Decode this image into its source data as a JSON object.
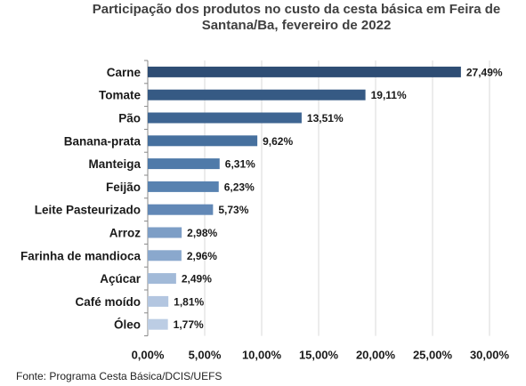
{
  "chart_data": {
    "type": "bar",
    "orientation": "horizontal",
    "title": "Participação dos produtos no custo da cesta básica em Feira de Santana/Ba, fevereiro de 2022",
    "title_lines": [
      "Participação dos produtos no custo da cesta básica em Feira de",
      "Santana/Ba, fevereiro de 2022"
    ],
    "categories": [
      "Carne",
      "Tomate",
      "Pão",
      "Banana-prata",
      "Manteiga",
      "Feijão",
      "Leite Pasteurizado",
      "Arroz",
      "Farinha de mandioca",
      "Açúcar",
      "Café moído",
      "Óleo"
    ],
    "values": [
      27.49,
      19.11,
      13.51,
      9.62,
      6.31,
      6.23,
      5.73,
      2.98,
      2.96,
      2.49,
      1.81,
      1.77
    ],
    "value_labels": [
      "27,49%",
      "19,11%",
      "13,51%",
      "9,62%",
      "6,31%",
      "6,23%",
      "5,73%",
      "2,98%",
      "2,96%",
      "2,49%",
      "1,81%",
      "1,77%"
    ],
    "bar_colors": [
      "#2e4d74",
      "#365a84",
      "#3e6592",
      "#46709e",
      "#4f7aa9",
      "#5882b0",
      "#6288b6",
      "#7d9ec6",
      "#8aa8cd",
      "#a2bad8",
      "#b3c6e0",
      "#bccde4"
    ],
    "xlim": [
      0,
      30
    ],
    "xticks": [
      0,
      5,
      10,
      15,
      20,
      25,
      30
    ],
    "xtick_labels": [
      "0,00%",
      "5,00%",
      "10,00%",
      "15,00%",
      "20,00%",
      "25,00%",
      "30,00%"
    ],
    "grid": "vertical",
    "grid_color": "#d9d9d9",
    "xlabel": "",
    "ylabel": "",
    "source": "Fonte: Programa Cesta Básica/DCIS/UEFS"
  }
}
